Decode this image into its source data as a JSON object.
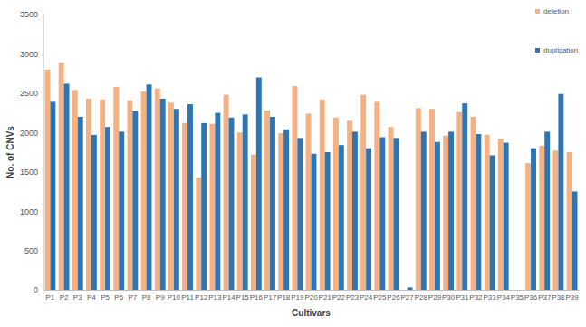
{
  "chart_data": {
    "type": "bar",
    "x_label": "Cultivars",
    "y_label": "No. of CNVs",
    "categories": [
      "P1",
      "P2",
      "P3",
      "P4",
      "P5",
      "P6",
      "P7",
      "P8",
      "P9",
      "P10",
      "P11",
      "P12",
      "P13",
      "P14",
      "P15",
      "P16",
      "P17",
      "P18",
      "P19",
      "P20",
      "P21",
      "P22",
      "P23",
      "P24",
      "P25",
      "P26",
      "P27",
      "P28",
      "P29",
      "P30",
      "P31",
      "P32",
      "P33",
      "P34",
      "P35",
      "P36",
      "P37",
      "P38",
      "P39"
    ],
    "series": [
      {
        "name": "deletion",
        "color": "#f4b183",
        "values": [
          2800,
          2890,
          2540,
          2430,
          2420,
          2580,
          2410,
          2520,
          2560,
          2380,
          2120,
          1430,
          2110,
          2480,
          2000,
          1720,
          2280,
          1990,
          2590,
          2240,
          2420,
          2190,
          2150,
          2480,
          2390,
          2070,
          0,
          2310,
          2300,
          1960,
          2260,
          2200,
          1970,
          1920,
          0,
          1610,
          1830,
          1770,
          1750
        ]
      },
      {
        "name": "duplication",
        "color": "#2e75b6",
        "values": [
          2390,
          2620,
          2200,
          1970,
          2070,
          2010,
          2270,
          2610,
          2430,
          2300,
          2360,
          2120,
          2250,
          2190,
          2230,
          2700,
          2200,
          2040,
          1930,
          1730,
          1750,
          1840,
          2010,
          1800,
          1940,
          1930,
          30,
          2010,
          1880,
          2010,
          2370,
          1980,
          1710,
          1870,
          0,
          1800,
          2010,
          2490,
          1250
        ]
      }
    ],
    "ylim": [
      0,
      3500
    ],
    "yticks": [
      0,
      500,
      1000,
      1500,
      2000,
      2500,
      3000,
      3500
    ],
    "grid": false,
    "legend": "top-right"
  }
}
